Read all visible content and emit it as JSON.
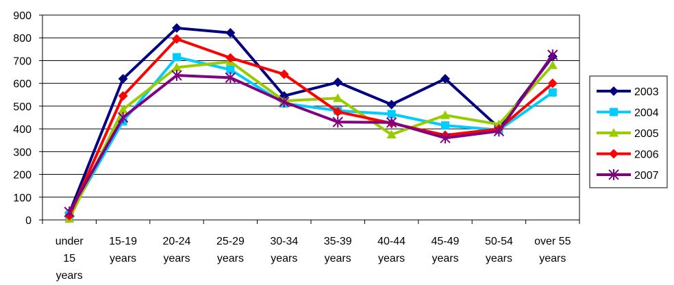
{
  "chart_data": {
    "type": "line",
    "title": "",
    "xlabel": "",
    "ylabel": "",
    "ylim": [
      0,
      900
    ],
    "yticks": [
      0,
      100,
      200,
      300,
      400,
      500,
      600,
      700,
      800,
      900
    ],
    "grid": "horizontal",
    "legend_position": "right",
    "categories": [
      [
        "under",
        "15",
        "years"
      ],
      [
        "15-19",
        "years"
      ],
      [
        "20-24",
        "years"
      ],
      [
        "25-29",
        "years"
      ],
      [
        "30-34",
        "years"
      ],
      [
        "35-39",
        "years"
      ],
      [
        "40-44",
        "years"
      ],
      [
        "45-49",
        "years"
      ],
      [
        "50-54",
        "years"
      ],
      [
        "over 55",
        "years"
      ]
    ],
    "series": [
      {
        "name": "2003",
        "color": "#000080",
        "marker": "diamond",
        "values": [
          30,
          620,
          843,
          822,
          545,
          605,
          507,
          620,
          405,
          718
        ]
      },
      {
        "name": "2004",
        "color": "#00CCFF",
        "marker": "square",
        "values": [
          22,
          433,
          715,
          660,
          512,
          480,
          465,
          415,
          395,
          560
        ]
      },
      {
        "name": "2005",
        "color": "#99CC00",
        "marker": "triangle",
        "values": [
          5,
          485,
          670,
          695,
          523,
          535,
          375,
          460,
          420,
          680
        ]
      },
      {
        "name": "2006",
        "color": "#FF0000",
        "marker": "diamond",
        "values": [
          18,
          545,
          795,
          712,
          640,
          475,
          425,
          372,
          400,
          600
        ]
      },
      {
        "name": "2007",
        "color": "#800080",
        "marker": "star",
        "values": [
          35,
          450,
          635,
          625,
          518,
          430,
          428,
          360,
          390,
          725
        ]
      }
    ]
  }
}
